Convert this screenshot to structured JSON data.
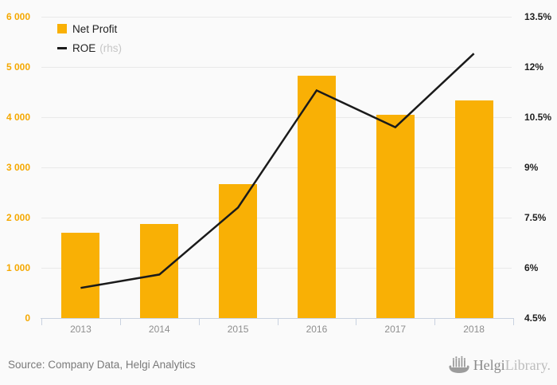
{
  "chart_data": {
    "type": "combo-bar-line",
    "title": "",
    "categories": [
      "2013",
      "2014",
      "2015",
      "2016",
      "2017",
      "2018"
    ],
    "series": [
      {
        "name": "Net Profit",
        "type": "bar",
        "axis": "left",
        "values": [
          1700,
          1880,
          2660,
          4830,
          4040,
          4330
        ]
      },
      {
        "name": "ROE",
        "type": "line",
        "axis": "right",
        "unit": "%",
        "values": [
          5.4,
          5.8,
          7.8,
          11.3,
          10.2,
          12.4
        ]
      }
    ],
    "left_axis": {
      "min": 0,
      "max": 6000,
      "step": 1000,
      "tick_labels": [
        "0",
        "1 000",
        "2 000",
        "3 000",
        "4 000",
        "5 000",
        "6 000"
      ]
    },
    "right_axis": {
      "min": 4.5,
      "max": 13.5,
      "step": 1.5,
      "tick_labels": [
        "4.5%",
        "6%",
        "7.5%",
        "9%",
        "10.5%",
        "12%",
        "13.5%"
      ]
    },
    "grid": true,
    "legend_position": "top-left"
  },
  "colors": {
    "bar": "#F9B005",
    "line": "#1A1A1A",
    "left_axis_label": "#F5A800",
    "axis_line": "#C9D2E0",
    "grid_line": "#E9E9E9"
  },
  "legend": {
    "net_profit_label": "Net Profit",
    "roe_label": "ROE",
    "roe_suffix": "(rhs)"
  },
  "footer": {
    "source": "Source: Company Data, Helgi Analytics",
    "logo_name": "Helgi",
    "logo_suffix": "Library."
  }
}
